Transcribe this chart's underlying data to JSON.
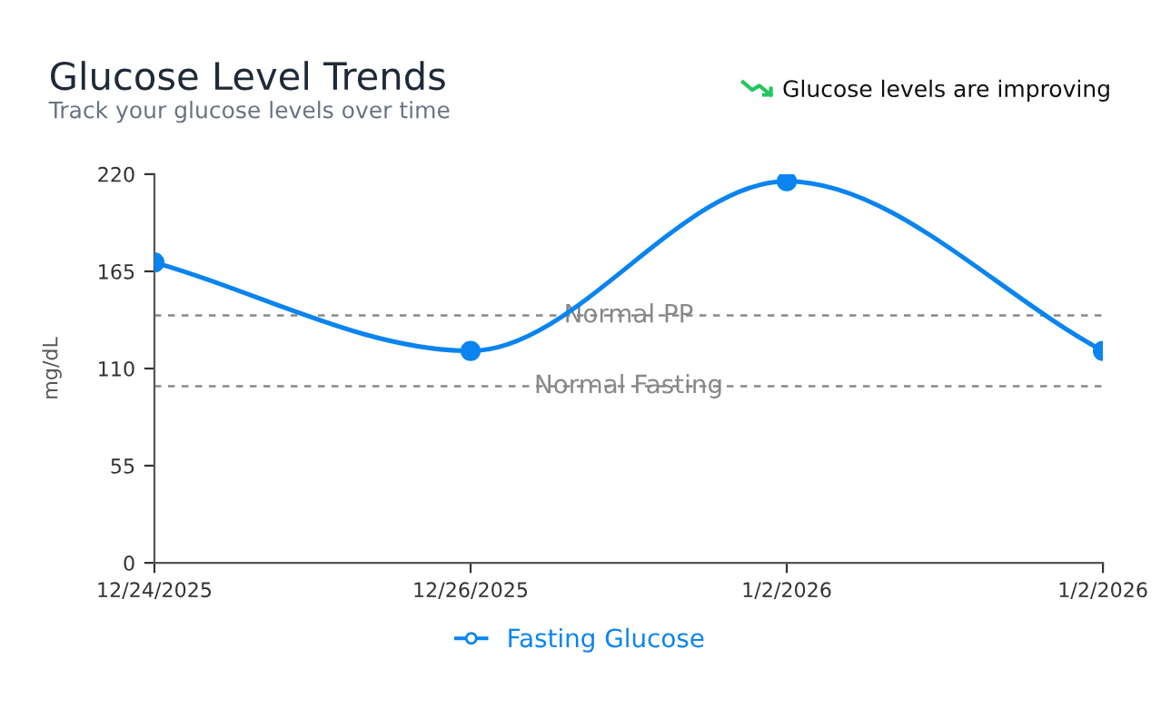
{
  "chart_data": {
    "type": "line",
    "title": "Glucose Level Trends",
    "subtitle": "Track your glucose levels over time",
    "ylabel": "mg/dL",
    "annotations": [
      "Glucose levels are improving"
    ],
    "categories": [
      "12/24/2025",
      "12/26/2025",
      "1/2/2026",
      "1/2/2026"
    ],
    "series": [
      {
        "name": "Fasting Glucose",
        "color": "#0a84f0",
        "values": [
          170,
          120,
          216,
          120
        ]
      }
    ],
    "ylim": [
      0,
      220
    ],
    "yticks": [
      0,
      55,
      110,
      165,
      220
    ],
    "ref_lines": [
      {
        "axis": "y",
        "value": 140,
        "label": "Normal PP",
        "color": "#888888",
        "line_style": "dashed"
      },
      {
        "axis": "y",
        "value": 100,
        "label": "Normal Fasting",
        "color": "#888888",
        "line_style": "dashed"
      }
    ],
    "marker": "circle",
    "line_style": "solid",
    "grid": false,
    "legend": "bottom"
  }
}
